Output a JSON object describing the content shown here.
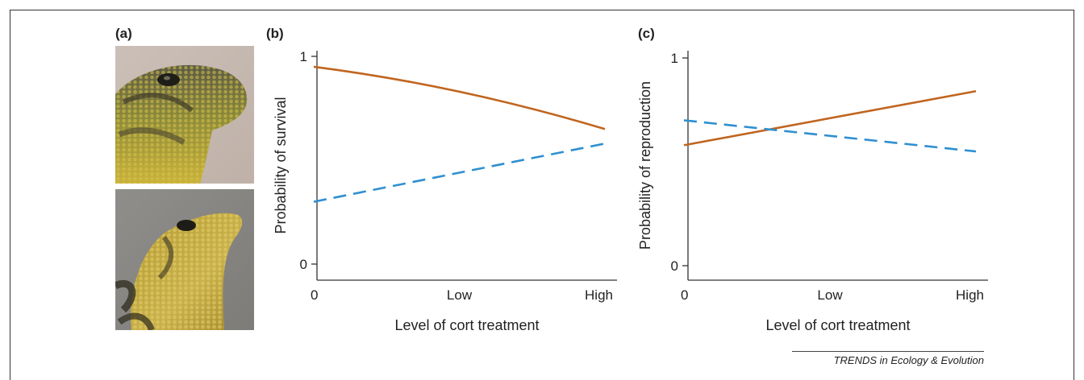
{
  "figure": {
    "credit": "TRENDS in Ecology & Evolution",
    "panel_a_label": "(a)"
  },
  "colors": {
    "solid": "#c0651f",
    "dashed": "#2f8fd0",
    "axis": "#333333"
  },
  "chart_data": [
    {
      "id": "b",
      "type": "line",
      "panel_label": "(b)",
      "xlabel": "Level of cort treatment",
      "ylabel": "Probability of survival",
      "x": [
        "0",
        "Low",
        "High"
      ],
      "x_tick_labels": [
        "0",
        "Low",
        "High"
      ],
      "y_tick_labels": [
        "0",
        "1"
      ],
      "ylim": [
        0,
        1
      ],
      "grid": false,
      "series": [
        {
          "style": "solid",
          "x": [
            0,
            0.5,
            1
          ],
          "values": [
            0.95,
            0.83,
            0.65
          ]
        },
        {
          "style": "dashed",
          "x": [
            0,
            1
          ],
          "values": [
            0.3,
            0.58
          ]
        }
      ]
    },
    {
      "id": "c",
      "type": "line",
      "panel_label": "(c)",
      "xlabel": "Level of cort treatment",
      "ylabel": "Probability of reproduction",
      "x": [
        "0",
        "Low",
        "High"
      ],
      "x_tick_labels": [
        "0",
        "Low",
        "High"
      ],
      "y_tick_labels": [
        "0",
        "1"
      ],
      "ylim": [
        0,
        1
      ],
      "grid": false,
      "series": [
        {
          "style": "solid",
          "x": [
            0,
            1
          ],
          "values": [
            0.58,
            0.84
          ]
        },
        {
          "style": "dashed",
          "x": [
            0,
            1
          ],
          "values": [
            0.7,
            0.55
          ]
        }
      ]
    }
  ]
}
